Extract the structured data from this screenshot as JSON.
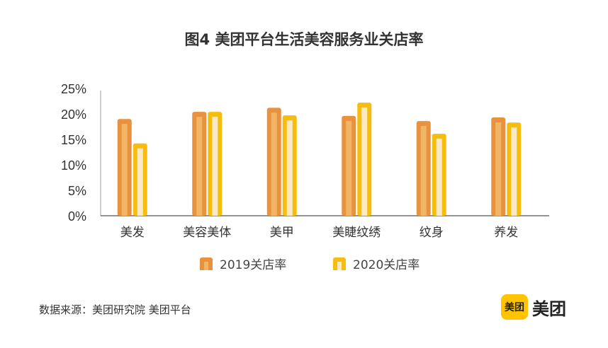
{
  "chart_data": {
    "type": "bar",
    "title": "图4  美团平台生活美容服务业关店率",
    "categories": [
      "美发",
      "美容美体",
      "美甲",
      "美睫纹绣",
      "纹身",
      "养发"
    ],
    "series": [
      {
        "name": "2019关店率",
        "values": [
          19.0,
          20.4,
          21.2,
          19.6,
          18.6,
          19.3
        ],
        "color": "#e8913f",
        "inner_color": "#f0b565"
      },
      {
        "name": "2020关店率",
        "values": [
          14.2,
          20.4,
          19.7,
          22.2,
          16.1,
          18.3
        ],
        "color": "#f6bd0f",
        "inner_color": "#fbe9c6"
      }
    ],
    "ylim": [
      0,
      25
    ],
    "yticks": [
      "0%",
      "5%",
      "10%",
      "15%",
      "20%",
      "25%"
    ],
    "grid": false,
    "legend": "bottom"
  },
  "source": "数据来源：美团研究院  美团平台",
  "logo": {
    "box_text": "美团",
    "text": "美团",
    "color": "#ffc300"
  }
}
